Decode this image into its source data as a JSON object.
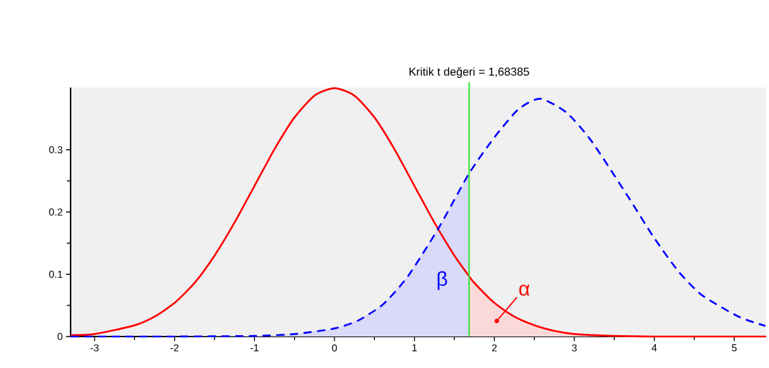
{
  "chart_data": {
    "type": "line",
    "xlim": [
      -3.3,
      5.4
    ],
    "ylim": [
      0,
      0.4
    ],
    "xticks": [
      -3,
      -2,
      -1,
      0,
      1,
      2,
      3,
      4,
      5
    ],
    "yticks": [
      0,
      0.1,
      0.2,
      0.3
    ],
    "marker": "none",
    "series": [
      {
        "type": "area",
        "color": "#d9d9fa",
        "x": [
          -3.3,
          -2,
          -1,
          -0.5,
          0,
          0.3,
          0.61,
          0.92,
          1.31,
          1.68385
        ],
        "values": [
          0,
          0,
          0.001,
          0.004,
          0.013,
          0.026,
          0.052,
          0.097,
          0.176,
          0.262
        ]
      },
      {
        "type": "area",
        "color": "#fcd9d9",
        "x": [
          1.68385,
          1.75,
          2,
          2.25,
          2.5,
          2.75,
          3,
          3.5,
          4,
          5.4
        ],
        "values": [
          0.097,
          0.086,
          0.054,
          0.032,
          0.018,
          0.009,
          0.004,
          0.001,
          0,
          0
        ]
      },
      {
        "color": "#ff0000",
        "line_style": "solid",
        "x": [
          -3.3,
          -3,
          -2.5,
          -2.25,
          -2,
          -1.75,
          -1.5,
          -1.25,
          -1,
          -0.75,
          -0.5,
          -0.25,
          0,
          0.25,
          0.5,
          0.75,
          1,
          1.25,
          1.5,
          1.68385,
          1.75,
          2,
          2.25,
          2.5,
          2.75,
          3,
          3.5,
          4,
          5.4
        ],
        "values": [
          0.002,
          0.004,
          0.018,
          0.032,
          0.054,
          0.086,
          0.13,
          0.183,
          0.242,
          0.301,
          0.352,
          0.387,
          0.399,
          0.387,
          0.352,
          0.301,
          0.242,
          0.183,
          0.13,
          0.097,
          0.086,
          0.054,
          0.032,
          0.018,
          0.009,
          0.004,
          0.001,
          0,
          0
        ]
      },
      {
        "color": "#0000ff",
        "line_style": "dashed",
        "x": [
          -3.3,
          -2,
          -1,
          -0.5,
          0,
          0.3,
          0.61,
          0.92,
          1.31,
          1.68385,
          2.0,
          2.3,
          2.57,
          2.9,
          3.22,
          3.68,
          3.99,
          4.3,
          4.6,
          5.07,
          5.39
        ],
        "values": [
          0,
          0,
          0.001,
          0.004,
          0.013,
          0.026,
          0.052,
          0.097,
          0.176,
          0.262,
          0.32,
          0.365,
          0.382,
          0.36,
          0.313,
          0.223,
          0.16,
          0.105,
          0.066,
          0.031,
          0.017
        ]
      }
    ],
    "ref_lines": [
      {
        "axis": "x",
        "value": 1.68385,
        "label": "Kritik t değeri = 1,68385",
        "color": "#33e633",
        "line_style": "solid"
      }
    ],
    "annotations": [
      "β",
      {
        "text": "α",
        "x": 2.03,
        "y": 0.025
      }
    ]
  }
}
